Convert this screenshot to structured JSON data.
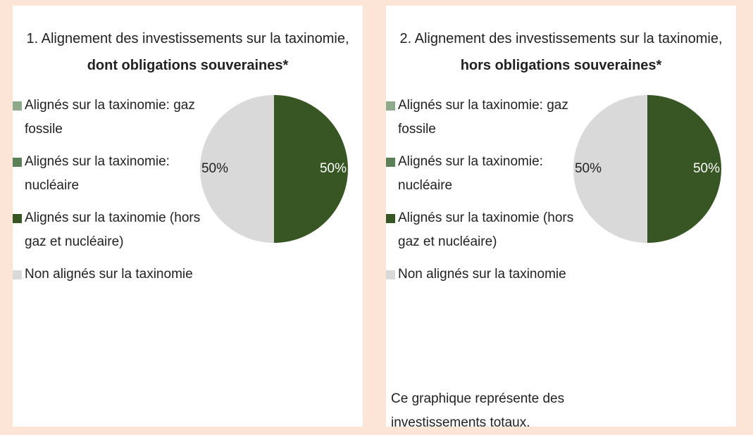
{
  "chart_data": [
    {
      "type": "pie",
      "title": "1. Alignement des investissements sur la taxinomie, ",
      "title_bold": "dont obligations souveraines*",
      "categories": [
        "Alignés sur la taxinomie: gaz fossile",
        "Alignés sur la taxinomie: nucléaire",
        "Alignés sur la taxinomie (hors gaz et nucléaire)",
        "Non alignés sur la taxinomie"
      ],
      "values": [
        0,
        0,
        50,
        50
      ],
      "value_labels": [
        null,
        null,
        "50%",
        "50%"
      ],
      "colors": [
        "#8fa98c",
        "#5b7f57",
        "#375623",
        "#d9d9d9"
      ]
    },
    {
      "type": "pie",
      "title": "2. Alignement des investissements sur la taxinomie, ",
      "title_bold": "hors obligations souveraines*",
      "categories": [
        "Alignés sur la taxinomie: gaz fossile",
        "Alignés sur la taxinomie: nucléaire",
        "Alignés sur la taxinomie (hors gaz et nucléaire)",
        "Non alignés sur la taxinomie"
      ],
      "values": [
        0,
        0,
        50,
        50
      ],
      "value_labels": [
        null,
        null,
        "50%",
        "50%"
      ],
      "colors": [
        "#8fa98c",
        "#5b7f57",
        "#375623",
        "#d9d9d9"
      ],
      "note": "Ce graphique représente  des investissements totaux."
    }
  ]
}
